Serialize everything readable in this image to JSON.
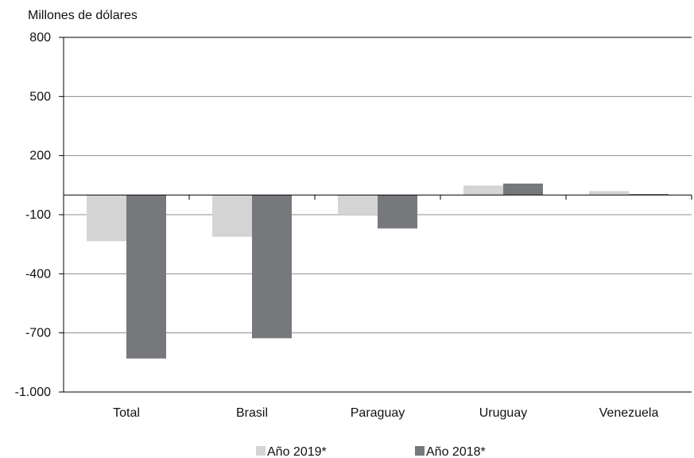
{
  "chart_data": {
    "type": "bar",
    "ylabel": "Millones de dólares",
    "categories": [
      "Total",
      "Brasil",
      "Paraguay",
      "Uruguay",
      "Venezuela"
    ],
    "series": [
      {
        "name": "Año 2019*",
        "color": "#d4d4d4",
        "values": [
          -235,
          -212,
          -100,
          48,
          20
        ]
      },
      {
        "name": "Año 2018*",
        "color": "#77787b",
        "values": [
          -830,
          -727,
          -170,
          58,
          5
        ]
      }
    ],
    "ylim": [
      -1000,
      800
    ],
    "yticks": [
      800,
      500,
      200,
      -100,
      -400,
      -700,
      -1000
    ],
    "ytick_labels": [
      "800",
      "500",
      "200",
      "-100",
      "-400",
      "-700",
      "-1.000"
    ],
    "grid": true,
    "legend": "bottom-center"
  }
}
